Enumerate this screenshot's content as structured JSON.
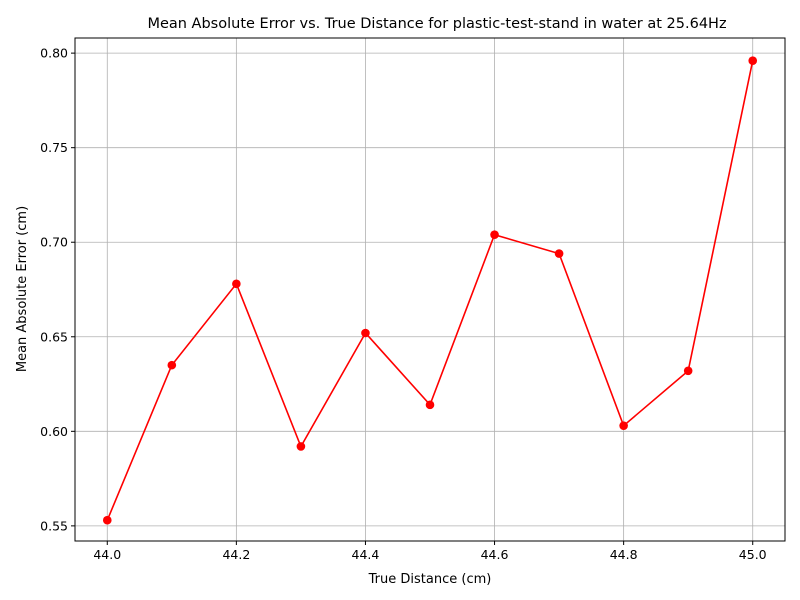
{
  "chart_data": {
    "type": "line",
    "title": "Mean Absolute Error vs. True Distance for plastic-test-stand in water at 25.64Hz",
    "xlabel": "True Distance (cm)",
    "ylabel": "Mean Absolute Error (cm)",
    "xlim": [
      43.95,
      45.05
    ],
    "ylim": [
      0.542,
      0.808
    ],
    "xticks": [
      44.0,
      44.2,
      44.4,
      44.6,
      44.8,
      45.0
    ],
    "xtick_labels": [
      "44.0",
      "44.2",
      "44.4",
      "44.6",
      "44.8",
      "45.0"
    ],
    "yticks": [
      0.55,
      0.6,
      0.65,
      0.7,
      0.75,
      0.8
    ],
    "ytick_labels": [
      "0.55",
      "0.60",
      "0.65",
      "0.70",
      "0.75",
      "0.80"
    ],
    "grid": true,
    "series": [
      {
        "color": "#ff0000",
        "marker": "circle",
        "x": [
          44.0,
          44.1,
          44.2,
          44.3,
          44.4,
          44.5,
          44.6,
          44.7,
          44.8,
          44.9,
          45.0
        ],
        "y": [
          0.553,
          0.635,
          0.678,
          0.592,
          0.652,
          0.614,
          0.704,
          0.694,
          0.603,
          0.632,
          0.796
        ]
      }
    ]
  }
}
